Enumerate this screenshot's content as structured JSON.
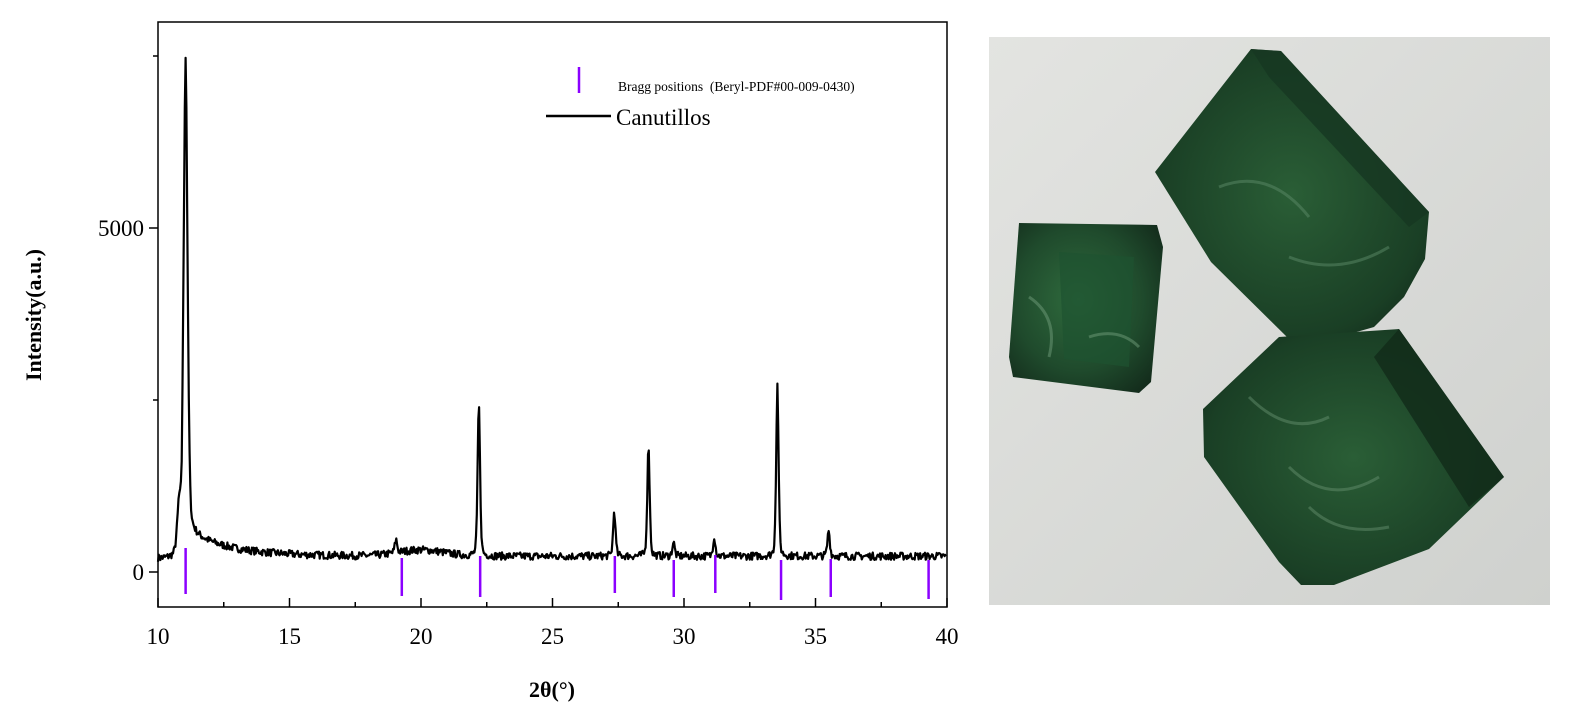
{
  "chart_data": {
    "type": "line",
    "xlabel": "2θ(°)",
    "ylabel": "Intensity(a.u.)",
    "xlim": [
      10,
      40
    ],
    "ylim": [
      -1000,
      8100
    ],
    "x_ticks": [
      10,
      15,
      20,
      25,
      30,
      35,
      40
    ],
    "x_tick_labels": [
      "10",
      "15",
      "20",
      "25",
      "30",
      "35",
      "40"
    ],
    "y_ticks": [
      0,
      5000
    ],
    "y_tick_labels": [
      "0",
      "5000"
    ],
    "y_minor_ticks": [
      2500,
      7500
    ],
    "grid": false,
    "legend_placement": "top-right",
    "series": [
      {
        "name": "Canutillos",
        "color": "#000000",
        "background_level": 230,
        "peaks": [
          {
            "x": 10.8,
            "y": 900
          },
          {
            "x": 11.05,
            "y": 7100
          },
          {
            "x": 19.05,
            "y": 420
          },
          {
            "x": 22.2,
            "y": 2450
          },
          {
            "x": 27.35,
            "y": 890
          },
          {
            "x": 28.65,
            "y": 1860
          },
          {
            "x": 29.6,
            "y": 430
          },
          {
            "x": 31.15,
            "y": 520
          },
          {
            "x": 33.55,
            "y": 2720
          },
          {
            "x": 35.5,
            "y": 610
          }
        ]
      }
    ],
    "bragg": {
      "name": "Bragg positions  (Beryl-PDF#00-009-0430)",
      "color": "#8B00FF",
      "positions": [
        11.05,
        19.27,
        22.25,
        27.37,
        29.61,
        31.19,
        33.69,
        35.58,
        39.3
      ]
    }
  },
  "photo": {
    "background": "#d9dbd8",
    "crystal_color": "#1f4a2c"
  }
}
